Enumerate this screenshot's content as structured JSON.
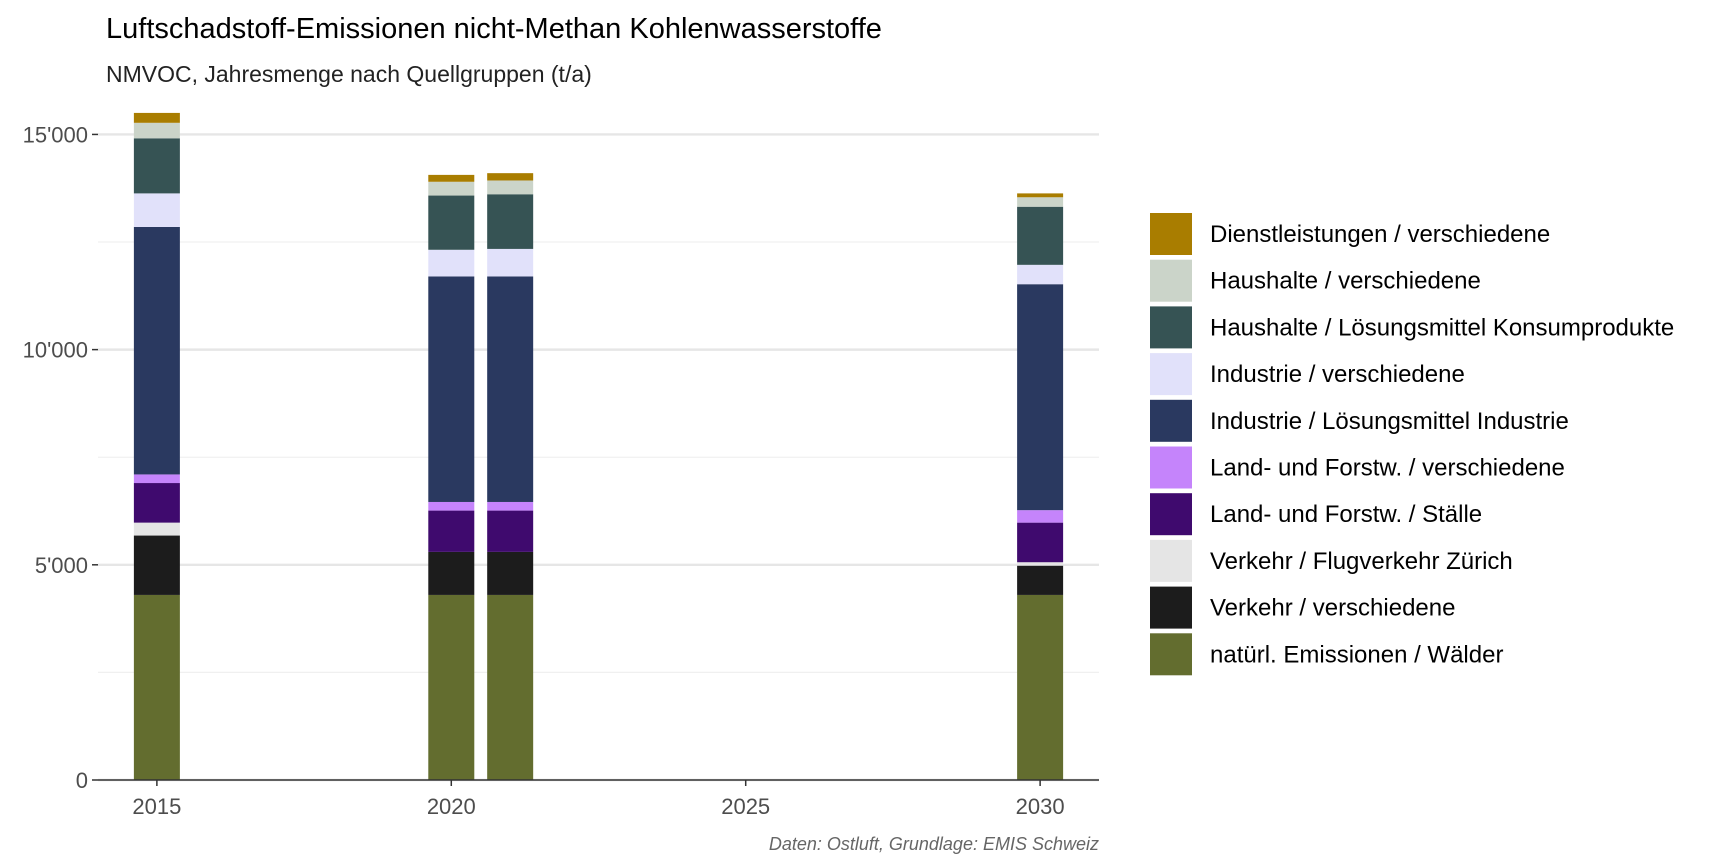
{
  "chart_data": {
    "type": "bar",
    "stacked": true,
    "title": "Luftschadstoff-Emissionen nicht-Methan Kohlenwasserstoffe",
    "subtitle": "NMVOC, Jahresmenge nach Quellgruppen (t/a)",
    "caption": "Daten: Ostluft, Grundlage: EMIS Schweiz",
    "xlabel": "",
    "ylabel": "",
    "xlim": [
      2014,
      2031
    ],
    "ylim": [
      0,
      15800
    ],
    "x_ticks": [
      2015,
      2020,
      2025,
      2030
    ],
    "y_ticks": [
      0,
      5000,
      10000,
      15000
    ],
    "x_tick_labels": [
      "2015",
      "2020",
      "2025",
      "2030"
    ],
    "y_tick_labels": [
      "0",
      "5'000",
      "10'000",
      "15'000"
    ],
    "grid": true,
    "legend_position": "right",
    "bars": [
      2015,
      2020,
      2021,
      2030
    ],
    "series": [
      {
        "name": "natürl. Emissionen / Wälder",
        "color": "#636d2f",
        "values": [
          4300,
          4300,
          4300,
          4300
        ]
      },
      {
        "name": "Verkehr / verschiedene",
        "color": "#1c1c1c",
        "values": [
          1380,
          1000,
          1000,
          680
        ]
      },
      {
        "name": "Verkehr / Flugverkehr Zürich",
        "color": "#e5e5e5",
        "values": [
          300,
          0,
          0,
          80
        ]
      },
      {
        "name": "Land- und Forstw. / Ställe",
        "color": "#3f0a6e",
        "values": [
          920,
          960,
          960,
          920
        ]
      },
      {
        "name": "Land- und Forstw. / verschiedene",
        "color": "#c584fb",
        "values": [
          200,
          200,
          200,
          290
        ]
      },
      {
        "name": "Industrie / Lösungsmittel Industrie",
        "color": "#2a3960",
        "values": [
          5750,
          5240,
          5240,
          5250
        ]
      },
      {
        "name": "Industrie / verschiedene",
        "color": "#e1e1fa",
        "values": [
          780,
          620,
          640,
          450
        ]
      },
      {
        "name": "Haushalte / Lösungsmittel Konsumprodukte",
        "color": "#365354",
        "values": [
          1280,
          1260,
          1270,
          1350
        ]
      },
      {
        "name": "Haushalte / verschiedene",
        "color": "#cbd4c9",
        "values": [
          360,
          320,
          320,
          220
        ]
      },
      {
        "name": "Dienstleistungen / verschiedene",
        "color": "#a97d00",
        "values": [
          230,
          160,
          170,
          90
        ]
      }
    ]
  }
}
